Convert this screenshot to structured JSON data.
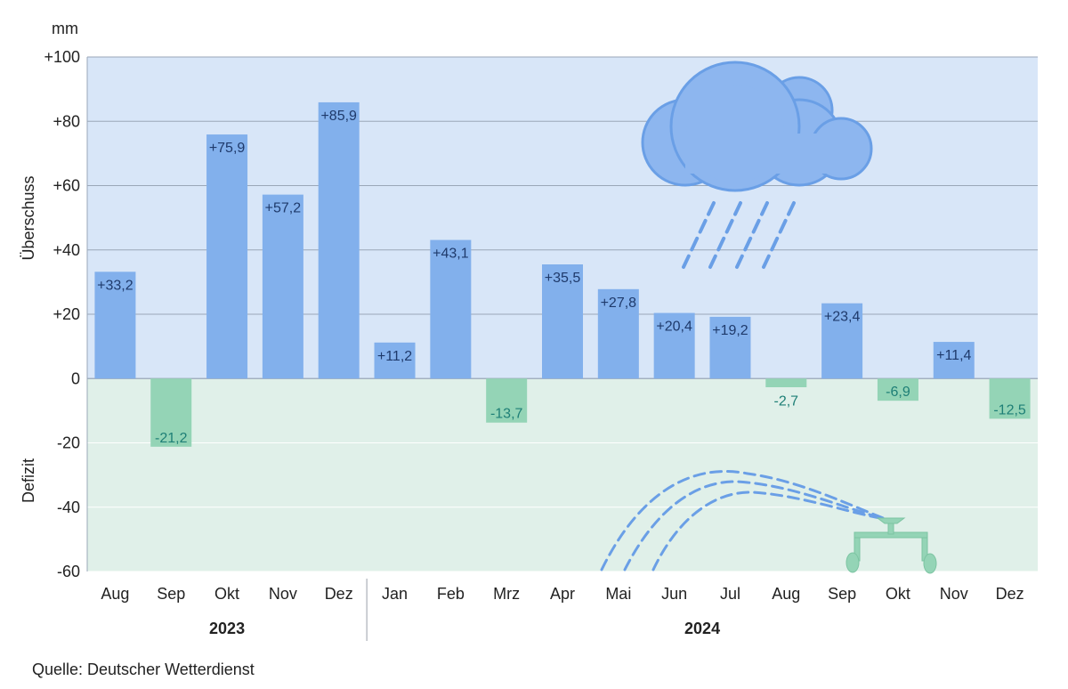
{
  "chart_data": {
    "type": "bar",
    "unit": "mm",
    "ylabel_positive": "Überschuss",
    "ylabel_negative": "Defizit",
    "ylim": [
      -60,
      100
    ],
    "ytick_values": [
      -60,
      -40,
      -20,
      0,
      20,
      40,
      60,
      80,
      100
    ],
    "ytick_labels": [
      "-60",
      "-40",
      "-20",
      "0",
      "+20",
      "+40",
      "+60",
      "+80",
      "+100"
    ],
    "categories": [
      "Aug",
      "Sep",
      "Okt",
      "Nov",
      "Dez",
      "Jan",
      "Feb",
      "Mrz",
      "Apr",
      "Mai",
      "Jun",
      "Jul",
      "Aug",
      "Sep",
      "Okt",
      "Nov",
      "Dez"
    ],
    "values": [
      33.2,
      -21.2,
      75.9,
      57.2,
      85.9,
      11.2,
      43.1,
      -13.7,
      35.5,
      27.8,
      20.4,
      19.2,
      -2.7,
      23.4,
      -6.9,
      11.4,
      -12.5
    ],
    "value_labels": [
      "+33,2",
      "-21,2",
      "+75,9",
      "+57,2",
      "+85,9",
      "+11,2",
      "+43,1",
      "-13,7",
      "+35,5",
      "+27,8",
      "+20,4",
      "+19,2",
      "-2,7",
      "+23,4",
      "-6,9",
      "+11,4",
      "-12,5"
    ],
    "years": [
      {
        "label": "2023",
        "first_index": 0,
        "last_index": 4
      },
      {
        "label": "2024",
        "first_index": 5,
        "last_index": 16
      }
    ],
    "colors": {
      "positive_bar": "#82b0ec",
      "negative_bar": "#94d4b6",
      "positive_bg": "#d8e6f8",
      "negative_bg": "#e0f0e9",
      "positive_label": "#1f3a6b",
      "negative_label": "#1e7f76",
      "grid": "#9aa7b8",
      "cloud": "#8db6ef",
      "cloud_stroke": "#6a9fe6",
      "sprinkler": "#94d4b6"
    }
  },
  "source": "Quelle: Deutscher Wetterdienst",
  "icons": [
    "rain-cloud-icon",
    "sprinkler-icon"
  ]
}
